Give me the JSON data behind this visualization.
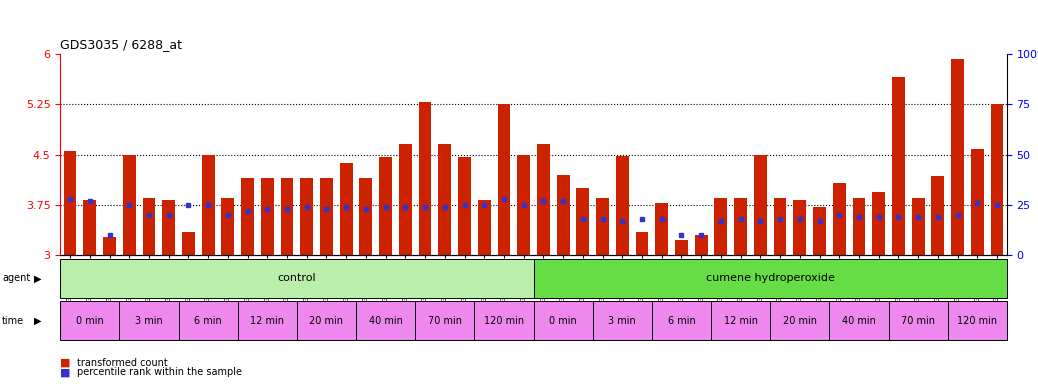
{
  "title": "GDS3035 / 6288_at",
  "sample_ids": [
    "GSM184944",
    "GSM184952",
    "GSM184960",
    "GSM184945",
    "GSM184953",
    "GSM184961",
    "GSM184946",
    "GSM184954",
    "GSM184962",
    "GSM184947",
    "GSM184955",
    "GSM184963",
    "GSM184948",
    "GSM184956",
    "GSM184964",
    "GSM184949",
    "GSM184957",
    "GSM184965",
    "GSM184950",
    "GSM184958",
    "GSM184966",
    "GSM184951",
    "GSM184959",
    "GSM184967",
    "GSM184968",
    "GSM184976",
    "GSM184984",
    "GSM184969",
    "GSM184977",
    "GSM184985",
    "GSM184970",
    "GSM184978",
    "GSM184986",
    "GSM184971",
    "GSM184979",
    "GSM184987",
    "GSM184972",
    "GSM184980",
    "GSM184988",
    "GSM184973",
    "GSM184981",
    "GSM184989",
    "GSM184974",
    "GSM184982",
    "GSM184990",
    "GSM184975",
    "GSM184983",
    "GSM184991"
  ],
  "bar_values": [
    4.55,
    3.82,
    3.27,
    4.5,
    3.85,
    3.83,
    3.35,
    4.5,
    3.85,
    4.15,
    4.15,
    4.15,
    4.15,
    4.15,
    4.38,
    4.15,
    4.47,
    4.65,
    5.28,
    4.65,
    4.47,
    3.83,
    5.25,
    4.5,
    4.65,
    4.2,
    4.0,
    3.85,
    4.48,
    3.35,
    3.78,
    3.23,
    3.3,
    3.85,
    3.85,
    4.5,
    3.85,
    3.83,
    3.72,
    4.08,
    3.85,
    3.95,
    5.65,
    3.85,
    4.18,
    5.92,
    4.58,
    5.25
  ],
  "percentile_values_norm": [
    28,
    27,
    10,
    25,
    20,
    20,
    25,
    25,
    20,
    22,
    23,
    23,
    24,
    23,
    24,
    23,
    24,
    24,
    24,
    24,
    25,
    25,
    28,
    25,
    27,
    27,
    18,
    18,
    17,
    18,
    18,
    10,
    10,
    17,
    18,
    17,
    18,
    18,
    17,
    20,
    19,
    19,
    19,
    19,
    19,
    20,
    26,
    25
  ],
  "ylim_left": [
    3.0,
    6.0
  ],
  "yticks_left": [
    3.0,
    3.75,
    4.5,
    5.25,
    6.0
  ],
  "ylim_right": [
    0,
    100
  ],
  "yticks_right": [
    0,
    25,
    50,
    75,
    100
  ],
  "bar_color": "#cc2200",
  "percentile_color": "#3333cc",
  "hline_values": [
    3.75,
    4.5,
    5.25
  ],
  "agent_groups": [
    {
      "label": "control",
      "color": "#bbeeaa",
      "start": 0,
      "end": 24
    },
    {
      "label": "cumene hydroperoxide",
      "color": "#66dd44",
      "start": 24,
      "end": 48
    }
  ],
  "time_groups": [
    {
      "label": "0 min",
      "color": "#ee88ee",
      "indices": [
        0,
        1,
        2
      ]
    },
    {
      "label": "3 min",
      "color": "#ee88ee",
      "indices": [
        3,
        4,
        5
      ]
    },
    {
      "label": "6 min",
      "color": "#ee88ee",
      "indices": [
        6,
        7,
        8
      ]
    },
    {
      "label": "12 min",
      "color": "#ee88ee",
      "indices": [
        9,
        10,
        11
      ]
    },
    {
      "label": "20 min",
      "color": "#ee88ee",
      "indices": [
        12,
        13,
        14
      ]
    },
    {
      "label": "40 min",
      "color": "#ee88ee",
      "indices": [
        15,
        16,
        17
      ]
    },
    {
      "label": "70 min",
      "color": "#ee88ee",
      "indices": [
        18,
        19,
        20
      ]
    },
    {
      "label": "120 min",
      "color": "#ee88ee",
      "indices": [
        21,
        22,
        23
      ]
    },
    {
      "label": "0 min",
      "color": "#ee88ee",
      "indices": [
        24,
        25,
        26
      ]
    },
    {
      "label": "3 min",
      "color": "#ee88ee",
      "indices": [
        27,
        28,
        29
      ]
    },
    {
      "label": "6 min",
      "color": "#ee88ee",
      "indices": [
        30,
        31,
        32
      ]
    },
    {
      "label": "12 min",
      "color": "#ee88ee",
      "indices": [
        33,
        34,
        35
      ]
    },
    {
      "label": "20 min",
      "color": "#ee88ee",
      "indices": [
        36,
        37,
        38
      ]
    },
    {
      "label": "40 min",
      "color": "#ee88ee",
      "indices": [
        39,
        40,
        41
      ]
    },
    {
      "label": "70 min",
      "color": "#ee88ee",
      "indices": [
        42,
        43,
        44
      ]
    },
    {
      "label": "120 min",
      "color": "#ee88ee",
      "indices": [
        45,
        46,
        47
      ]
    }
  ],
  "legend_items": [
    {
      "label": "transformed count",
      "color": "#cc2200"
    },
    {
      "label": "percentile rank within the sample",
      "color": "#3333cc"
    }
  ],
  "background_color": "#ffffff",
  "plot_bg_color": "#ffffff",
  "ymin": 3.0,
  "ymax": 6.0
}
